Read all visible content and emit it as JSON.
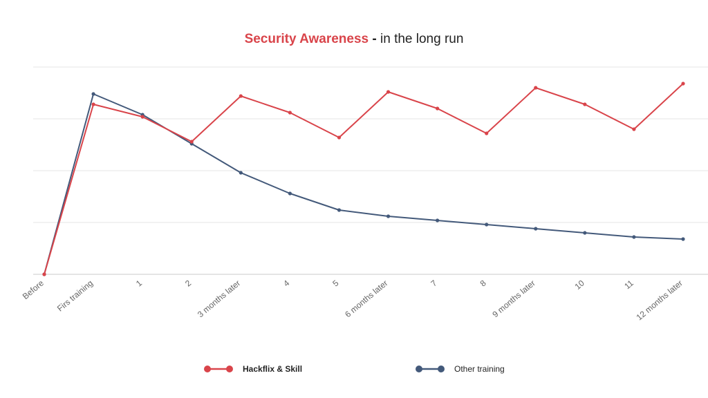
{
  "chart_data": {
    "type": "line",
    "title_highlight": "Security Awareness",
    "title_separator": "-",
    "title_rest": "in the long run",
    "categories": [
      "Before",
      "Firs training",
      "1",
      "2",
      "3 months later",
      "4",
      "5",
      "6 months later",
      "7",
      "8",
      "9 months later",
      "10",
      "11",
      "12 months later"
    ],
    "ylim": [
      0,
      100
    ],
    "grid": true,
    "legend_position": "bottom",
    "series": [
      {
        "name": "Hackflix & Skill",
        "color": "#d9444a",
        "values": [
          0,
          82,
          76,
          64,
          86,
          78,
          66,
          88,
          80,
          68,
          90,
          82,
          70,
          92
        ]
      },
      {
        "name": "Other training",
        "color": "#43597a",
        "values": [
          0,
          87,
          77,
          63,
          49,
          39,
          31,
          28,
          26,
          24,
          22,
          20,
          18,
          17
        ]
      }
    ]
  }
}
